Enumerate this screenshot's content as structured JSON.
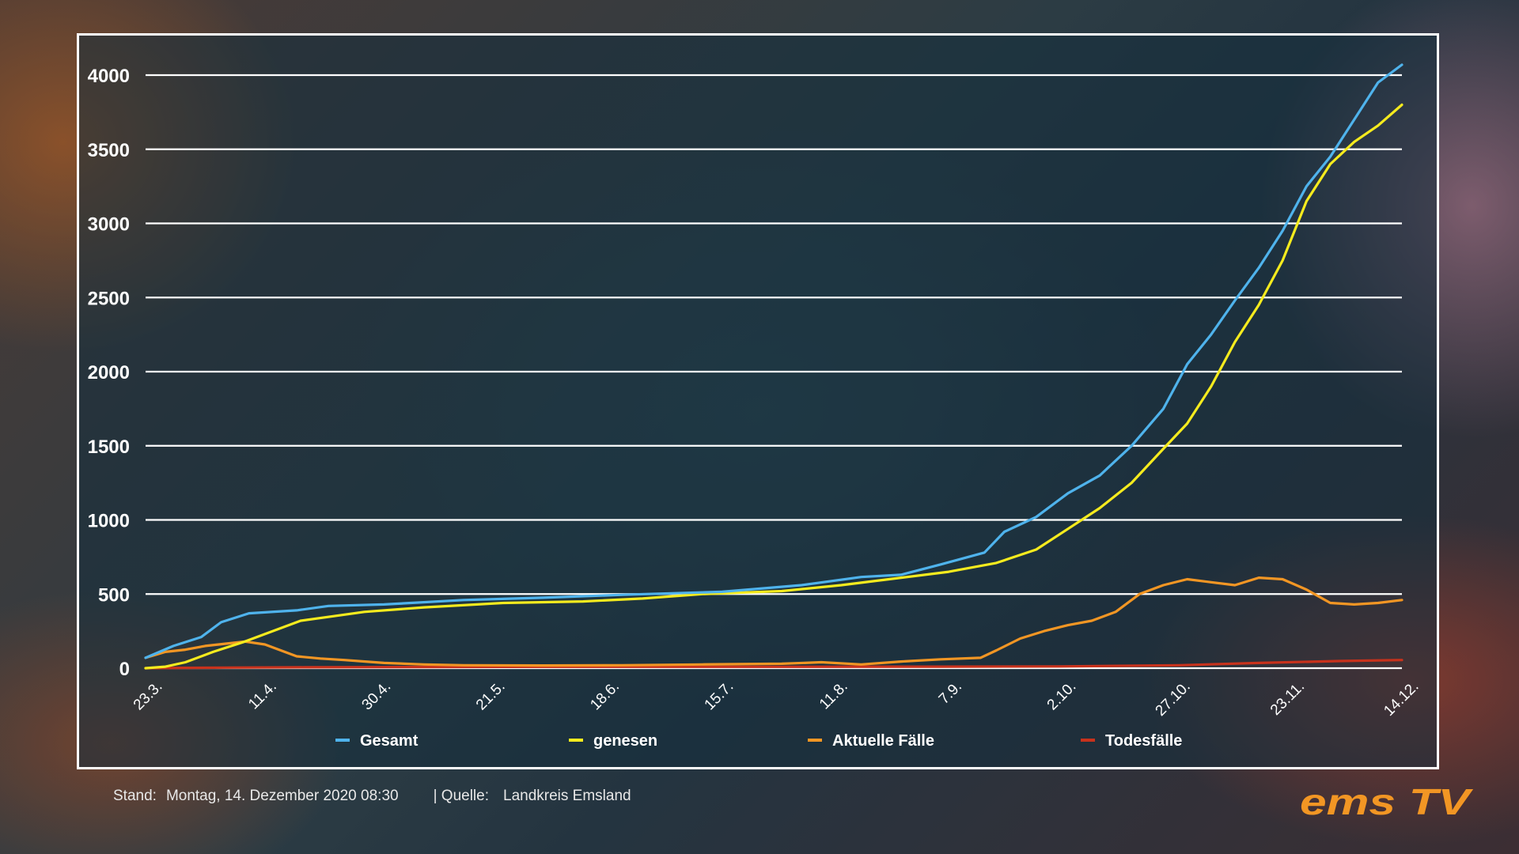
{
  "chart_data": {
    "type": "line",
    "x": [
      "23.3.",
      "11.4.",
      "30.4.",
      "21.5.",
      "18.6.",
      "15.7.",
      "11.8.",
      "7.9.",
      "2.10.",
      "27.10.",
      "23.11.",
      "14.12."
    ],
    "yticks": [
      "4000",
      "3500",
      "3000",
      "2500",
      "2000",
      "1500",
      "1000",
      "500",
      "0"
    ],
    "ylim": [
      0,
      4000
    ],
    "grid": true,
    "legend_position": "bottom",
    "series": [
      {
        "name": "Gesamt",
        "color": "#4fb3ec",
        "values": [
          [
            0,
            70
          ],
          [
            7,
            150
          ],
          [
            14,
            210
          ],
          [
            19,
            310
          ],
          [
            26,
            370
          ],
          [
            38,
            390
          ],
          [
            46,
            420
          ],
          [
            60,
            430
          ],
          [
            80,
            460
          ],
          [
            100,
            475
          ],
          [
            120,
            495
          ],
          [
            145,
            515
          ],
          [
            165,
            560
          ],
          [
            180,
            615
          ],
          [
            190,
            630
          ],
          [
            200,
            700
          ],
          [
            211,
            780
          ],
          [
            216,
            920
          ],
          [
            224,
            1020
          ],
          [
            232,
            1180
          ],
          [
            240,
            1300
          ],
          [
            248,
            1500
          ],
          [
            256,
            1750
          ],
          [
            262,
            2050
          ],
          [
            268,
            2250
          ],
          [
            274,
            2480
          ],
          [
            280,
            2700
          ],
          [
            286,
            2950
          ],
          [
            292,
            3250
          ],
          [
            298,
            3450
          ],
          [
            304,
            3700
          ],
          [
            310,
            3950
          ],
          [
            316,
            4070
          ]
        ]
      },
      {
        "name": "genesen",
        "color": "#f5eb1e",
        "values": [
          [
            0,
            0
          ],
          [
            5,
            10
          ],
          [
            10,
            40
          ],
          [
            17,
            110
          ],
          [
            25,
            180
          ],
          [
            32,
            250
          ],
          [
            39,
            320
          ],
          [
            47,
            350
          ],
          [
            55,
            380
          ],
          [
            70,
            410
          ],
          [
            90,
            440
          ],
          [
            110,
            450
          ],
          [
            125,
            470
          ],
          [
            140,
            500
          ],
          [
            160,
            520
          ],
          [
            175,
            560
          ],
          [
            190,
            610
          ],
          [
            202,
            650
          ],
          [
            214,
            710
          ],
          [
            224,
            800
          ],
          [
            232,
            940
          ],
          [
            240,
            1080
          ],
          [
            248,
            1250
          ],
          [
            256,
            1480
          ],
          [
            262,
            1650
          ],
          [
            268,
            1900
          ],
          [
            274,
            2200
          ],
          [
            280,
            2450
          ],
          [
            286,
            2750
          ],
          [
            292,
            3150
          ],
          [
            298,
            3400
          ],
          [
            304,
            3550
          ],
          [
            310,
            3660
          ],
          [
            316,
            3800
          ]
        ]
      },
      {
        "name": "Aktuelle Fälle",
        "color": "#f29624",
        "values": [
          [
            0,
            70
          ],
          [
            5,
            110
          ],
          [
            10,
            125
          ],
          [
            15,
            150
          ],
          [
            20,
            165
          ],
          [
            25,
            180
          ],
          [
            30,
            160
          ],
          [
            34,
            120
          ],
          [
            38,
            80
          ],
          [
            44,
            65
          ],
          [
            50,
            55
          ],
          [
            60,
            35
          ],
          [
            70,
            25
          ],
          [
            80,
            20
          ],
          [
            100,
            18
          ],
          [
            120,
            20
          ],
          [
            140,
            25
          ],
          [
            160,
            30
          ],
          [
            170,
            40
          ],
          [
            180,
            25
          ],
          [
            190,
            45
          ],
          [
            200,
            60
          ],
          [
            210,
            70
          ],
          [
            214,
            120
          ],
          [
            220,
            200
          ],
          [
            226,
            250
          ],
          [
            232,
            290
          ],
          [
            238,
            320
          ],
          [
            244,
            380
          ],
          [
            250,
            500
          ],
          [
            256,
            560
          ],
          [
            262,
            600
          ],
          [
            268,
            580
          ],
          [
            274,
            560
          ],
          [
            280,
            610
          ],
          [
            286,
            600
          ],
          [
            292,
            530
          ],
          [
            298,
            440
          ],
          [
            304,
            430
          ],
          [
            310,
            440
          ],
          [
            316,
            460
          ]
        ]
      },
      {
        "name": "Todesfälle",
        "color": "#c8321c",
        "values": [
          [
            0,
            0
          ],
          [
            10,
            2
          ],
          [
            20,
            4
          ],
          [
            40,
            6
          ],
          [
            80,
            8
          ],
          [
            120,
            9
          ],
          [
            160,
            9
          ],
          [
            200,
            10
          ],
          [
            230,
            12
          ],
          [
            260,
            20
          ],
          [
            280,
            35
          ],
          [
            300,
            48
          ],
          [
            316,
            55
          ]
        ]
      }
    ],
    "xlabel": "",
    "ylabel": ""
  },
  "footer": {
    "stand_label": "Stand:",
    "stand_value": "Montag, 14. Dezember 2020 08:30",
    "source_label": "| Quelle:",
    "source_value": "Landkreis Emsland"
  },
  "logo": {
    "text": "ems TV",
    "color": "#f29624"
  }
}
